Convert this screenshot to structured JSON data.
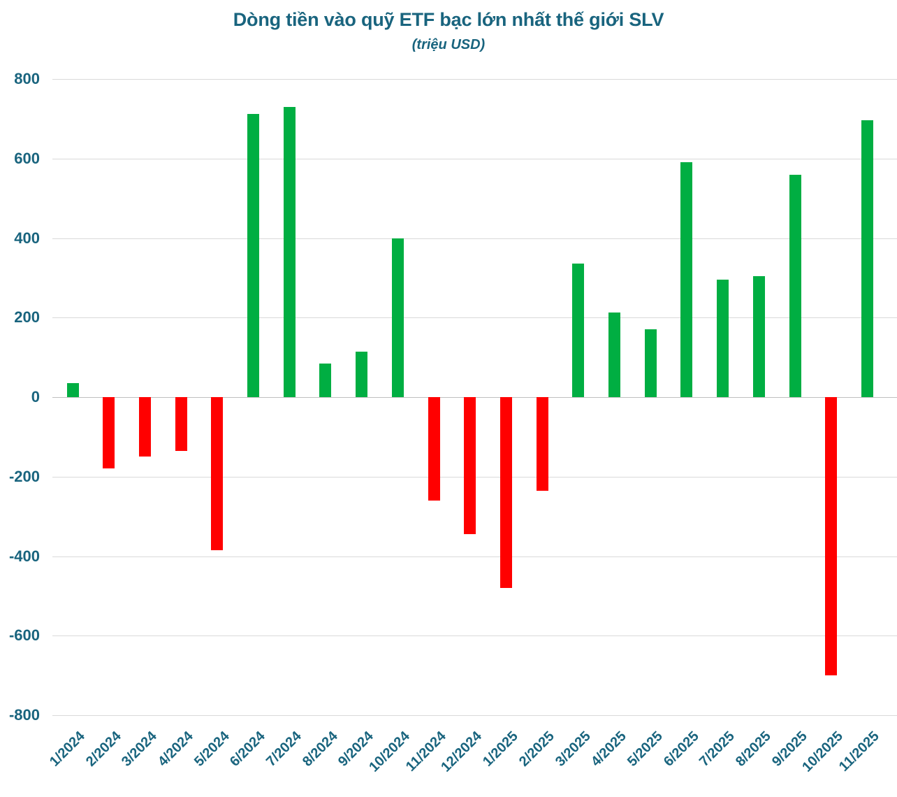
{
  "chart_data": {
    "type": "bar",
    "title": "Dòng tiền vào quỹ ETF bạc lớn nhất thế giới SLV",
    "subtitle": "(triệu USD)",
    "categories": [
      "1/2024",
      "2/2024",
      "3/2024",
      "4/2024",
      "5/2024",
      "6/2024",
      "7/2024",
      "8/2024",
      "9/2024",
      "10/2024",
      "11/2024",
      "12/2024",
      "1/2025",
      "2/2025",
      "3/2025",
      "4/2025",
      "5/2025",
      "6/2025",
      "7/2025",
      "8/2025",
      "9/2025",
      "10/2025",
      "11/2025"
    ],
    "values": [
      35,
      -180,
      -150,
      -135,
      -385,
      712,
      730,
      85,
      115,
      400,
      -260,
      -345,
      -480,
      -235,
      335,
      212,
      170,
      590,
      295,
      305,
      560,
      -700,
      697
    ],
    "xlabel": "",
    "ylabel": "",
    "ylim": [
      -800,
      800
    ],
    "y_ticks": [
      800,
      600,
      400,
      200,
      0,
      -200,
      -400,
      -600,
      -800
    ],
    "y_tick_labels": [
      "800",
      "600",
      "400",
      "200",
      "0",
      "-200",
      "-400",
      "-600",
      "-800"
    ],
    "grid": true,
    "legend": "none",
    "colors": {
      "positive_bar": "#00AE42",
      "negative_bar": "#FF0000",
      "text": "#19647E",
      "gridline": "#D9D9D9",
      "zero_line": "#C0C0C0",
      "background": "#FFFFFF"
    }
  }
}
